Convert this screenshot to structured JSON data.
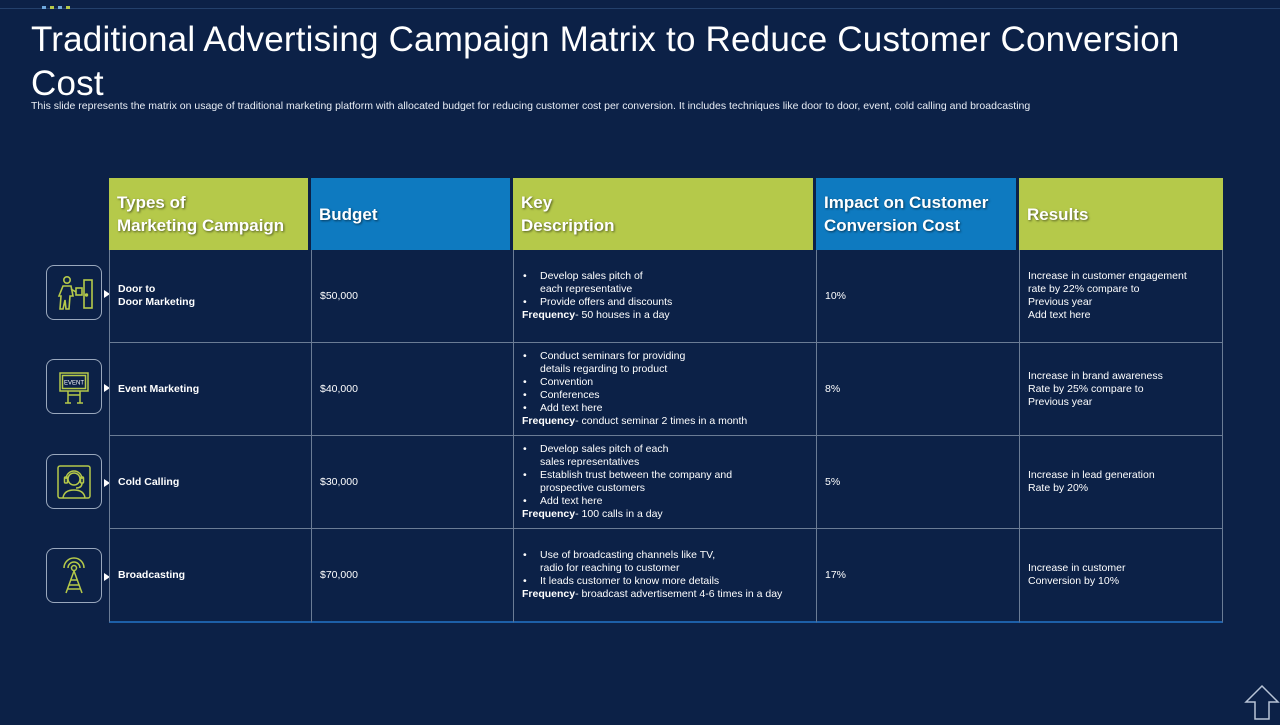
{
  "page": {
    "title": "Traditional Advertising Campaign Matrix to Reduce Customer Conversion Cost",
    "subtitle": "This slide represents the matrix on usage of traditional marketing platform with allocated budget for reducing customer cost per conversion. It includes techniques like door to door, event, cold calling and broadcasting"
  },
  "colors": {
    "background": "#0c2147",
    "header_green": "#b5c94a",
    "header_blue": "#0e7ac0",
    "icon_accent": "#b5c94a"
  },
  "table": {
    "headers": [
      {
        "label": "Types of\nMarketing Campaign"
      },
      {
        "label": "Budget"
      },
      {
        "label": "Key\nDescription"
      },
      {
        "label": "Impact on Customer\nConversion Cost"
      },
      {
        "label": "Results"
      }
    ],
    "rows": [
      {
        "type": "Door to\nDoor Marketing",
        "icon": "door-to-door-icon",
        "budget": "$50,000",
        "description_items": [
          "Develop sales pitch of\neach representative",
          "Provide offers and discounts"
        ],
        "frequency_label": "Frequency",
        "frequency_text": "- 50 houses in a day",
        "impact": "10%",
        "results": "Increase in customer engagement\nrate by 22% compare to\nPrevious year\nAdd text here"
      },
      {
        "type": "Event Marketing",
        "icon": "event-sign-icon",
        "icon_label": "EVENT",
        "budget": "$40,000",
        "description_items": [
          "Conduct seminars for providing\ndetails regarding to product",
          "Convention",
          "Conferences",
          "Add text here"
        ],
        "frequency_label": "Frequency",
        "frequency_text": "- conduct seminar 2 times in a month",
        "impact": "8%",
        "results": "Increase in brand awareness\nRate by 25% compare to\nPrevious year"
      },
      {
        "type": "Cold Calling",
        "icon": "headset-person-icon",
        "budget": "$30,000",
        "description_items": [
          "Develop sales pitch of each\nsales representatives",
          "Establish trust between the company and\nprospective customers",
          "Add text here"
        ],
        "frequency_label": "Frequency",
        "frequency_text": "- 100 calls in a day",
        "impact": "5%",
        "results": "Increase in lead generation\nRate by 20%"
      },
      {
        "type": "Broadcasting",
        "icon": "broadcast-tower-icon",
        "budget": "$70,000",
        "description_items": [
          "Use of broadcasting channels like TV,\nradio for reaching to customer",
          "It leads customer to know more details"
        ],
        "frequency_label": "Frequency",
        "frequency_text": "- broadcast advertisement 4-6 times in a day",
        "impact": "17%",
        "results": "Increase in customer\nConversion by 10%"
      }
    ]
  }
}
